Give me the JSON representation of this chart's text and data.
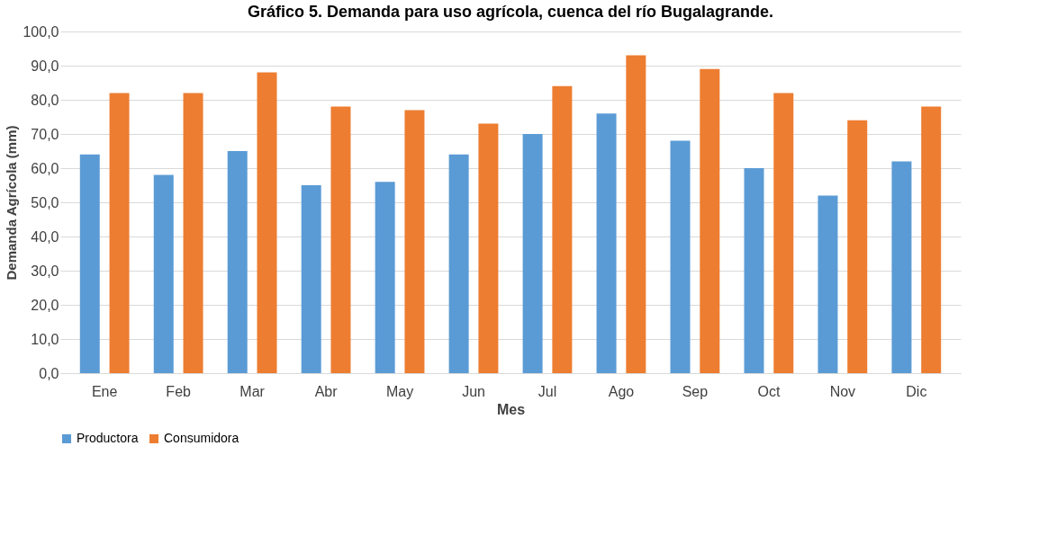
{
  "chart_data": {
    "type": "bar",
    "title": "Gráfico 5. Demanda para uso agrícola, cuenca del río Bugalagrande.",
    "xlabel": "Mes",
    "ylabel": "Demanda Agrícola (mm)",
    "categories": [
      "Ene",
      "Feb",
      "Mar",
      "Abr",
      "May",
      "Jun",
      "Jul",
      "Ago",
      "Sep",
      "Oct",
      "Nov",
      "Dic"
    ],
    "series": [
      {
        "name": "Productora",
        "color": "#5b9bd5",
        "values": [
          64,
          58,
          65,
          55,
          56,
          64,
          70,
          76,
          68,
          60,
          52,
          62
        ]
      },
      {
        "name": "Consumidora",
        "color": "#ed7d31",
        "values": [
          82,
          82,
          88,
          78,
          77,
          73,
          84,
          93,
          89,
          82,
          74,
          78
        ]
      }
    ],
    "ylim": [
      0,
      100
    ],
    "yticks": [
      {
        "value": 0,
        "label": "0,0"
      },
      {
        "value": 10,
        "label": "10,0"
      },
      {
        "value": 20,
        "label": "20,0"
      },
      {
        "value": 30,
        "label": "30,0"
      },
      {
        "value": 40,
        "label": "40,0"
      },
      {
        "value": 50,
        "label": "50,0"
      },
      {
        "value": 60,
        "label": "60,0"
      },
      {
        "value": 70,
        "label": "70,0"
      },
      {
        "value": 80,
        "label": "80,0"
      },
      {
        "value": 90,
        "label": "90,0"
      },
      {
        "value": 100,
        "label": "100,0"
      }
    ],
    "grid": "y",
    "legend": "bottom"
  }
}
